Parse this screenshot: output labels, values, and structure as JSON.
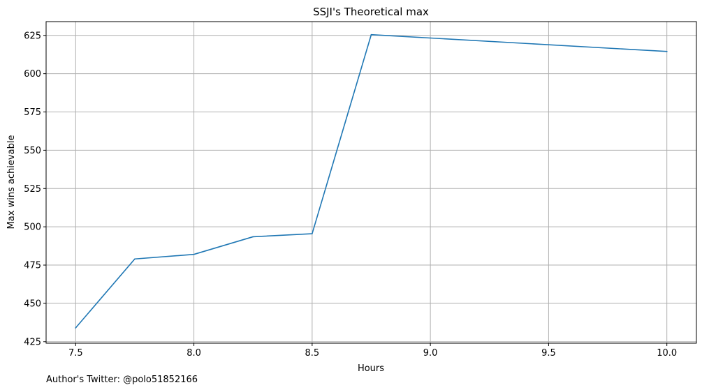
{
  "footer": {
    "note": "Author's Twitter: @polo51852166"
  },
  "colors": {
    "line": "#1f77b4",
    "grid": "#b0b0b0",
    "axis": "#000000",
    "background": "#ffffff"
  },
  "chart_data": {
    "type": "line",
    "title": "SSJI's Theoretical max",
    "xlabel": "Hours",
    "ylabel": "Max wins achievable",
    "xlim": [
      7.375,
      10.125
    ],
    "ylim": [
      424,
      634
    ],
    "x_ticks": [
      7.5,
      8.0,
      8.5,
      9.0,
      9.5,
      10.0
    ],
    "x_tick_labels": [
      "7.5",
      "8.0",
      "8.5",
      "9.0",
      "9.5",
      "10.0"
    ],
    "y_ticks": [
      425,
      450,
      475,
      500,
      525,
      550,
      575,
      600,
      625
    ],
    "y_tick_labels": [
      "425",
      "450",
      "475",
      "500",
      "525",
      "550",
      "575",
      "600",
      "625"
    ],
    "grid": true,
    "series": [
      {
        "x": [
          7.5,
          7.75,
          8.0,
          8.25,
          8.5,
          8.75,
          10.0
        ],
        "y": [
          434,
          479,
          482,
          493.5,
          495.5,
          625.5,
          614.5
        ],
        "color": "#1f77b4"
      }
    ]
  }
}
